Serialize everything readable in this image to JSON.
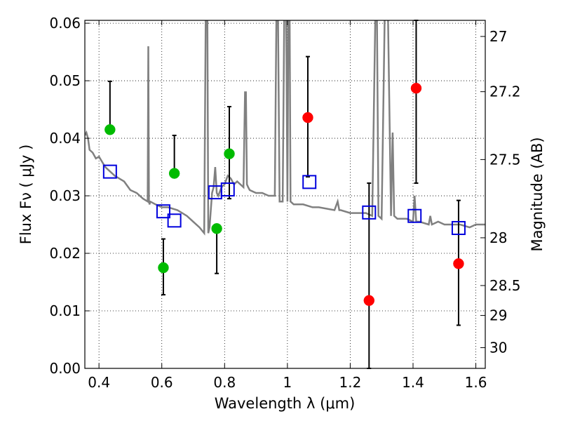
{
  "chart_data": {
    "type": "scatter",
    "xlabel": "Wavelength  λ (μm)",
    "ylabel": "Flux  Fν  ( μJy )",
    "ylabel_right": "Magnitude (AB)",
    "xlim": [
      0.355,
      1.63
    ],
    "ylim": [
      0.0,
      0.0605
    ],
    "grid": true,
    "x_ticks": [
      0.4,
      0.6,
      0.8,
      1.0,
      1.2,
      1.4,
      1.6
    ],
    "x_tick_labels": [
      "0.4",
      "0.6",
      "0.8",
      "1",
      "1.2",
      "1.4",
      "1.6"
    ],
    "y_ticks": [
      0.0,
      0.01,
      0.02,
      0.03,
      0.04,
      0.05,
      0.06
    ],
    "y_tick_labels": [
      "0.00",
      "0.01",
      "0.02",
      "0.03",
      "0.04",
      "0.05",
      "0.06"
    ],
    "right_ticks": [
      {
        "label": "27",
        "flux": 0.0577
      },
      {
        "label": "27.2",
        "flux": 0.0481
      },
      {
        "label": "27.5",
        "flux": 0.0363
      },
      {
        "label": "28",
        "flux": 0.0227
      },
      {
        "label": "28.5",
        "flux": 0.0144
      },
      {
        "label": "29",
        "flux": 0.0092
      },
      {
        "label": "30",
        "flux": 0.0036
      }
    ],
    "series": [
      {
        "color": "#00bb00",
        "points": [
          {
            "x": 0.435,
            "y": 0.0415,
            "err_low": 0.0415,
            "err_high": 0.0499
          },
          {
            "x": 0.605,
            "y": 0.0175,
            "err_low": 0.0128,
            "err_high": 0.0225
          },
          {
            "x": 0.64,
            "y": 0.0339,
            "err_low": 0.0339,
            "err_high": 0.0405
          },
          {
            "x": 0.775,
            "y": 0.0243,
            "err_low": 0.0165,
            "err_high": 0.0243
          },
          {
            "x": 0.815,
            "y": 0.0373,
            "err_low": 0.0295,
            "err_high": 0.0455
          }
        ]
      },
      {
        "color": "#ff0000",
        "points": [
          {
            "x": 1.065,
            "y": 0.0436,
            "err_low": 0.0333,
            "err_high": 0.0542
          },
          {
            "x": 1.26,
            "y": 0.0118,
            "err_low": 0.0,
            "err_high": 0.0322
          },
          {
            "x": 1.41,
            "y": 0.0487,
            "err_low": 0.0322,
            "err_high": 0.0605
          },
          {
            "x": 1.545,
            "y": 0.0182,
            "err_low": 0.0075,
            "err_high": 0.0292
          }
        ]
      },
      {
        "color": "#0000dd",
        "marker": "open-square",
        "points": [
          {
            "x": 0.435,
            "y": 0.0342
          },
          {
            "x": 0.605,
            "y": 0.0273
          },
          {
            "x": 0.64,
            "y": 0.0257
          },
          {
            "x": 0.77,
            "y": 0.0306
          },
          {
            "x": 0.81,
            "y": 0.0311
          },
          {
            "x": 1.07,
            "y": 0.0324
          },
          {
            "x": 1.26,
            "y": 0.0271
          },
          {
            "x": 1.405,
            "y": 0.0265
          },
          {
            "x": 1.545,
            "y": 0.0244
          }
        ]
      }
    ],
    "spectrum": {
      "color": "#808080",
      "x": [
        0.355,
        0.36,
        0.365,
        0.37,
        0.38,
        0.39,
        0.4,
        0.42,
        0.45,
        0.48,
        0.5,
        0.52,
        0.54,
        0.555,
        0.557,
        0.559,
        0.561,
        0.563,
        0.58,
        0.6,
        0.62,
        0.65,
        0.68,
        0.7,
        0.72,
        0.735,
        0.74,
        0.745,
        0.748,
        0.752,
        0.76,
        0.765,
        0.77,
        0.775,
        0.78,
        0.79,
        0.8,
        0.81,
        0.82,
        0.83,
        0.84,
        0.85,
        0.86,
        0.865,
        0.868,
        0.871,
        0.875,
        0.88,
        0.9,
        0.92,
        0.94,
        0.96,
        0.965,
        0.97,
        0.975,
        0.98,
        0.985,
        0.99,
        0.993,
        0.996,
        1.0,
        1.003,
        1.007,
        1.01,
        1.02,
        1.05,
        1.08,
        1.1,
        1.15,
        1.16,
        1.165,
        1.17,
        1.2,
        1.25,
        1.27,
        1.28,
        1.285,
        1.29,
        1.3,
        1.31,
        1.32,
        1.33,
        1.335,
        1.34,
        1.35,
        1.38,
        1.4,
        1.405,
        1.41,
        1.42,
        1.45,
        1.455,
        1.46,
        1.48,
        1.5,
        1.53,
        1.55,
        1.58,
        1.6,
        1.62,
        1.63
      ],
      "y": [
        0.0405,
        0.041,
        0.04,
        0.038,
        0.0375,
        0.0365,
        0.0368,
        0.035,
        0.0335,
        0.0325,
        0.031,
        0.0305,
        0.0295,
        0.029,
        0.056,
        0.029,
        0.0285,
        0.029,
        0.0285,
        0.028,
        0.028,
        0.0275,
        0.0265,
        0.0255,
        0.0245,
        0.0235,
        0.062,
        0.062,
        0.0235,
        0.0245,
        0.0305,
        0.0315,
        0.035,
        0.0305,
        0.03,
        0.0315,
        0.032,
        0.0335,
        0.033,
        0.032,
        0.0325,
        0.032,
        0.0315,
        0.048,
        0.048,
        0.032,
        0.0315,
        0.031,
        0.0305,
        0.0305,
        0.03,
        0.03,
        0.062,
        0.062,
        0.029,
        0.029,
        0.029,
        0.062,
        0.062,
        0.062,
        0.029,
        0.062,
        0.062,
        0.029,
        0.0285,
        0.0285,
        0.028,
        0.028,
        0.0275,
        0.029,
        0.0275,
        0.0275,
        0.027,
        0.027,
        0.0265,
        0.062,
        0.062,
        0.0265,
        0.026,
        0.062,
        0.062,
        0.0265,
        0.041,
        0.0265,
        0.026,
        0.026,
        0.0255,
        0.03,
        0.0255,
        0.0255,
        0.025,
        0.0265,
        0.025,
        0.0255,
        0.025,
        0.025,
        0.025,
        0.0245,
        0.025,
        0.025,
        0.025
      ]
    }
  }
}
